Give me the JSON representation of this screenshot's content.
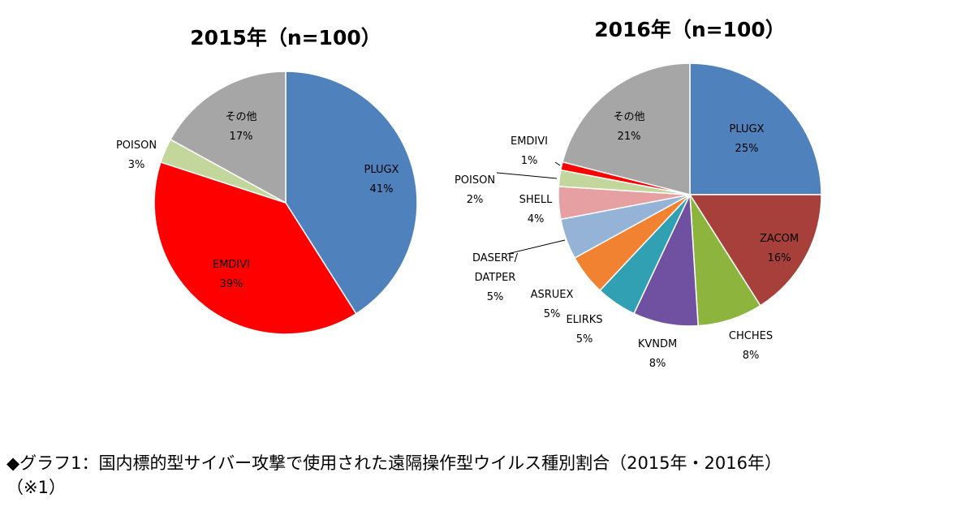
{
  "chart_data": [
    {
      "type": "pie",
      "title": "2015年（n=100）",
      "slices": [
        {
          "label": "PLUGX",
          "value_label": "41%",
          "value": 41,
          "color": "#4f81bd"
        },
        {
          "label": "EMDIVI",
          "value_label": "39%",
          "value": 39,
          "color": "#ff0000"
        },
        {
          "label": "POISON",
          "value_label": "3%",
          "value": 3,
          "color": "#c3d69b"
        },
        {
          "label": "その他",
          "value_label": "17%",
          "value": 17,
          "color": "#a6a6a6"
        }
      ]
    },
    {
      "type": "pie",
      "title": "2016年（n=100）",
      "slices": [
        {
          "label": "PLUGX",
          "value_label": "25%",
          "value": 25,
          "color": "#4f81bd"
        },
        {
          "label": "ZACOM",
          "value_label": "16%",
          "value": 16,
          "color": "#a7403b"
        },
        {
          "label": "CHCHES",
          "value_label": "8%",
          "value": 8,
          "color": "#8db53d"
        },
        {
          "label": "KVNDM",
          "value_label": "8%",
          "value": 8,
          "color": "#7050a0"
        },
        {
          "label": "ELIRKS",
          "value_label": "5%",
          "value": 5,
          "color": "#31a0b3"
        },
        {
          "label": "ASRUEX",
          "value_label": "5%",
          "value": 5,
          "color": "#f08232"
        },
        {
          "label": "DASERF/\nDATPER",
          "value_label": "5%",
          "value": 5,
          "color": "#95b3d7"
        },
        {
          "label": "SHELL",
          "value_label": "4%",
          "value": 4,
          "color": "#e6a0a2"
        },
        {
          "label": "POISON",
          "value_label": "2%",
          "value": 2,
          "color": "#c3d69b"
        },
        {
          "label": "EMDIVI",
          "value_label": "1%",
          "value": 1,
          "color": "#ff0000"
        },
        {
          "label": "その他",
          "value_label": "21%",
          "value": 21,
          "color": "#a6a6a6"
        }
      ]
    }
  ],
  "caption": {
    "line1": "◆グラフ1：国内標的型サイバー攻撃で使用された遠隔操作型ウイルス種別割合（2015年・2016年）",
    "line2": "（※1）"
  }
}
